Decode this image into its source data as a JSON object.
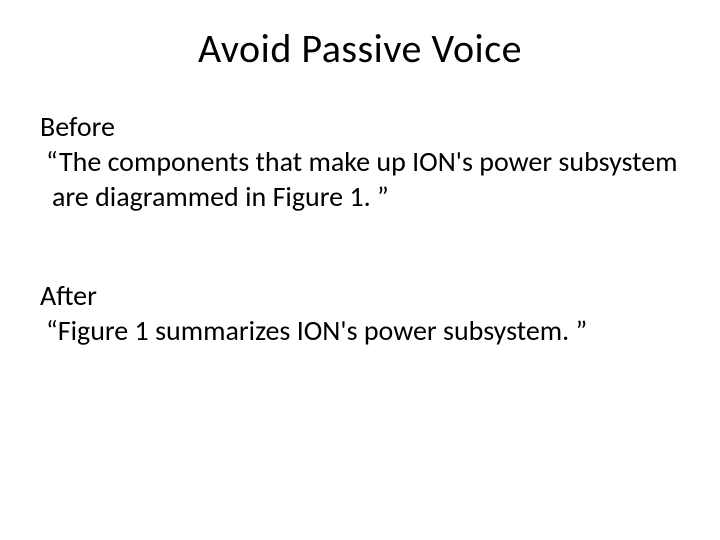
{
  "slide": {
    "title": "Avoid Passive Voice",
    "before_label": "Before",
    "before_quote": "“The components that make up ION's power subsystem are diagrammed in Figure 1. ”",
    "after_label": "After",
    "after_quote": "“Figure 1 summarizes ION's power subsystem. ”",
    "title_fontsize": 40,
    "body_fontsize": 28,
    "background_color": "#ffffff",
    "text_color": "#000000",
    "font_family": "Calibri"
  }
}
